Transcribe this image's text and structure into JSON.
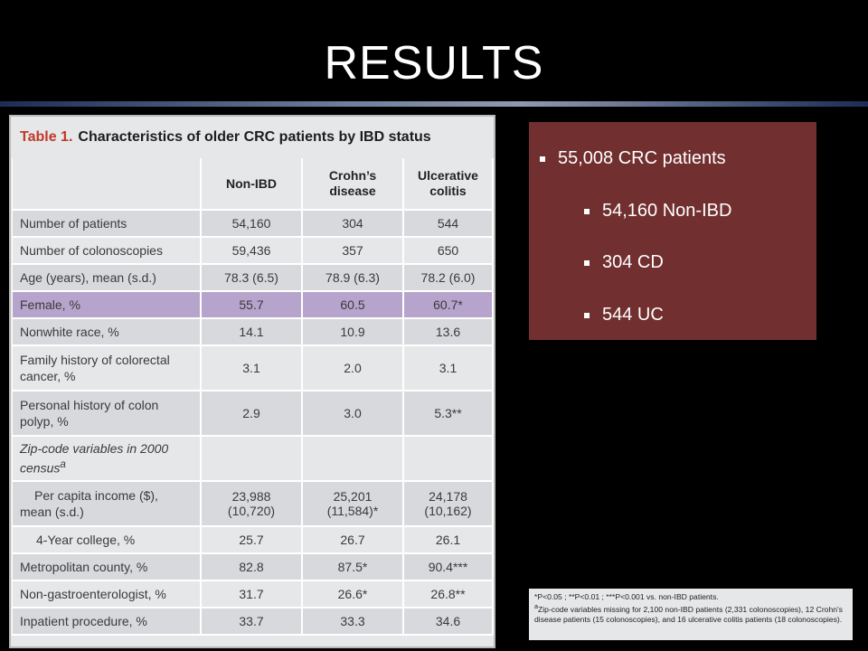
{
  "slide": {
    "title": "RESULTS"
  },
  "table": {
    "caption_prefix": "Table 1.",
    "caption_text": "Characteristics of older CRC patients by IBD status",
    "headers": [
      "",
      "Non-IBD",
      "Crohn’s disease",
      "Ulcerative colitis"
    ],
    "header_lines": [
      [
        "Non-IBD",
        ""
      ],
      [
        "Crohn’s",
        "disease"
      ],
      [
        "Ulcerative",
        "colitis"
      ]
    ],
    "rows": [
      {
        "label": "Number of patients",
        "values": [
          "54,160",
          "304",
          "544"
        ]
      },
      {
        "label": "Number of colonoscopies",
        "values": [
          "59,436",
          "357",
          "650"
        ]
      },
      {
        "label": "Age (years), mean (s.d.)",
        "values": [
          "78.3 (6.5)",
          "78.9 (6.3)",
          "78.2 (6.0)"
        ]
      },
      {
        "label": "Female, %",
        "values": [
          "55.7",
          "60.5",
          "60.7*"
        ]
      },
      {
        "label": "Nonwhite race, %",
        "values": [
          "14.1",
          "10.9",
          "13.6"
        ]
      },
      {
        "label": "Family history of colorectal cancer, %",
        "values": [
          "3.1",
          "2.0",
          "3.1"
        ]
      },
      {
        "label": "Personal history of colon polyp, %",
        "values": [
          "2.9",
          "3.0",
          "5.3**"
        ]
      },
      {
        "label": "Zip-code variables in 2000 census",
        "label_sup": "a",
        "values": [
          "",
          "",
          ""
        ]
      },
      {
        "label": "Per capita income ($), mean (s.d.)",
        "values": [
          "23,988 (10,720)",
          "25,201 (11,584)*",
          "24,178 (10,162)"
        ]
      },
      {
        "label": "4-Year college, %",
        "values": [
          "25.7",
          "26.7",
          "26.1"
        ]
      },
      {
        "label": "Metropolitan county, %",
        "values": [
          "82.8",
          "87.5*",
          "90.4***"
        ]
      },
      {
        "label": "Non-gastroenterologist, %",
        "values": [
          "31.7",
          "26.6*",
          "26.8**"
        ]
      },
      {
        "label": "Inpatient procedure, %",
        "values": [
          "33.7",
          "33.3",
          "34.6"
        ]
      }
    ]
  },
  "summary": {
    "items": [
      "55,008 CRC patients",
      "54,160 Non-IBD",
      "304 CD",
      "544 UC"
    ]
  },
  "footnote": {
    "line1": "*P<0.05 ; **P<0.01 ; ***P<0.001 vs. non-IBD patients.",
    "line2": "Zip-code variables missing for 2,100 non-IBD patients (2,331 colonoscopies), 12 Crohn's disease patients (15 colonoscopies), and 16 ulcerative colitis patients (18 colonoscopies).",
    "line2_prefix": "a"
  },
  "colors": {
    "background": "#000000",
    "summary_box": "#722f2f",
    "highlight_row": "#b7a4cc",
    "caption_accent": "#c0392b"
  }
}
